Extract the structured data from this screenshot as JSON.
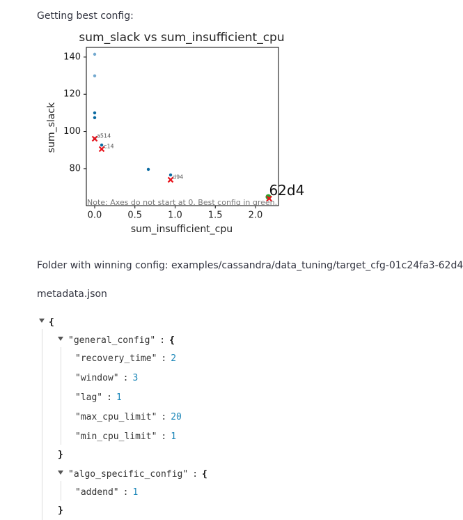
{
  "heading": "Getting best config:",
  "chart_data": {
    "type": "scatter",
    "title": "sum_slack vs sum_insufficient_cpu",
    "x_label": "sum_insufficient_cpu",
    "y_label": "sum_slack",
    "xlim": [
      -0.104,
      2.286
    ],
    "ylim": [
      60.1,
      145.2
    ],
    "xticks": [
      {
        "value": 0,
        "label": "0.0"
      },
      0.5,
      {
        "value": 1,
        "label": "1.0"
      },
      1.5,
      {
        "value": 2,
        "label": "2.0"
      }
    ],
    "yticks": [
      80,
      100,
      120,
      140
    ],
    "series": [
      {
        "color": "#74a9cf",
        "marker": "dot",
        "x": [
          0,
          0
        ],
        "values": [
          141.5,
          129.9
        ]
      },
      {
        "color": "#0a6aa1",
        "marker": "dot",
        "x": [
          0,
          0,
          0,
          0.087,
          0.667,
          0.944,
          2.16
        ],
        "values": [
          110,
          107.4,
          96.1,
          92.7,
          79.6,
          76.6,
          64.6
        ]
      },
      {
        "color": "#2ca02c",
        "marker": "best",
        "x": [
          2.16
        ],
        "values": [
          64.8
        ],
        "labels": [
          "62d4"
        ]
      },
      {
        "color": "#e8141c",
        "marker": "x",
        "x": [
          0,
          0.087,
          0.944,
          2.17
        ],
        "values": [
          96.1,
          90.5,
          74,
          63.9
        ],
        "labels": [
          "a514",
          "c14",
          "d94",
          null
        ]
      }
    ],
    "note": "Note: Axes do not start at 0. Best config in green.",
    "grid": false
  },
  "folder_text": "Folder with winning config: examples/cassandra/data_tuning/target_cfg-01c24fa3-62d4",
  "file_name": "metadata.json",
  "json_tree": {
    "open": "{",
    "close": "}",
    "separator": ":",
    "sections": [
      {
        "key": "\"general_config\"",
        "entries": [
          {
            "key": "\"recovery_time\"",
            "value": 2
          },
          {
            "key": "\"window\"",
            "value": 3
          },
          {
            "key": "\"lag\"",
            "value": 1
          },
          {
            "key": "\"max_cpu_limit\"",
            "value": 20
          },
          {
            "key": "\"min_cpu_limit\"",
            "value": 1
          }
        ]
      },
      {
        "key": "\"algo_specific_config\"",
        "entries": [
          {
            "key": "\"addend\"",
            "value": 1
          }
        ]
      }
    ]
  }
}
